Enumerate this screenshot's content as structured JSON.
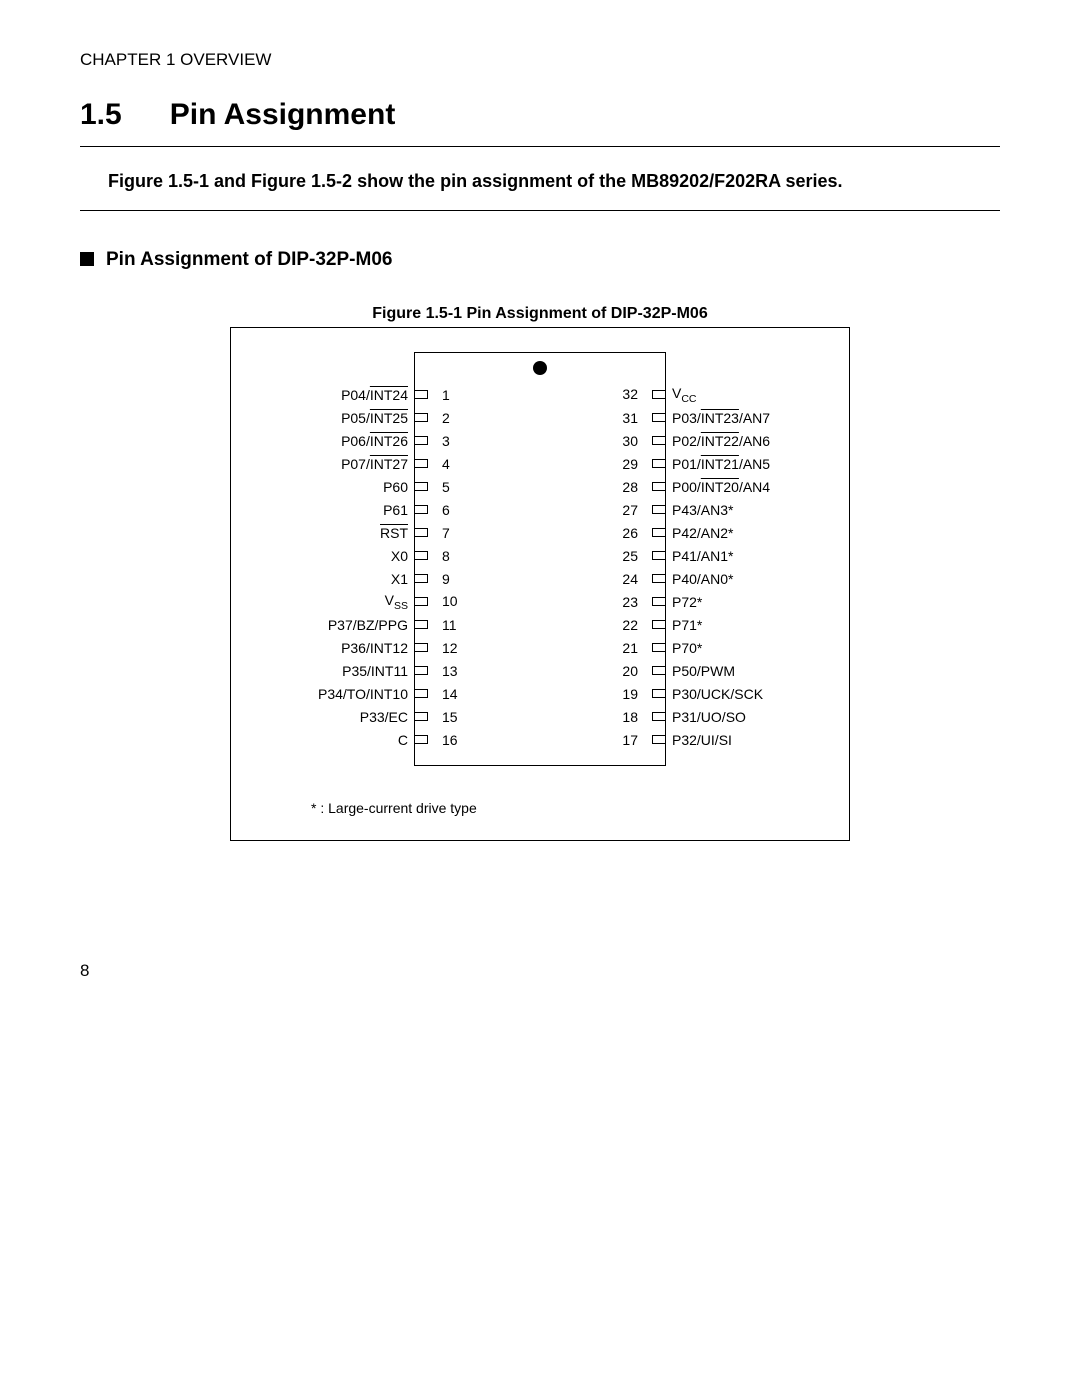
{
  "chapter_header": "CHAPTER 1  OVERVIEW",
  "section_number": "1.5",
  "section_title": "Pin Assignment",
  "intro_text": "Figure 1.5-1 and Figure 1.5-2 show the pin assignment of the MB89202/F202RA series.",
  "subheading": "Pin Assignment of DIP-32P-M06",
  "figure_caption": "Figure 1.5-1  Pin Assignment of DIP-32P-M06",
  "footnote": "* : Large-current drive type",
  "page_number": "8",
  "pins": {
    "left": [
      {
        "num": 1,
        "segments": [
          {
            "t": "P04/"
          },
          {
            "t": "INT24",
            "ov": true
          }
        ]
      },
      {
        "num": 2,
        "segments": [
          {
            "t": "P05/"
          },
          {
            "t": "INT25",
            "ov": true
          }
        ]
      },
      {
        "num": 3,
        "segments": [
          {
            "t": "P06/"
          },
          {
            "t": "INT26",
            "ov": true
          }
        ]
      },
      {
        "num": 4,
        "segments": [
          {
            "t": "P07/"
          },
          {
            "t": "INT27",
            "ov": true
          }
        ]
      },
      {
        "num": 5,
        "segments": [
          {
            "t": "P60"
          }
        ]
      },
      {
        "num": 6,
        "segments": [
          {
            "t": "P61"
          }
        ]
      },
      {
        "num": 7,
        "segments": [
          {
            "t": "RST",
            "ov": true
          }
        ]
      },
      {
        "num": 8,
        "segments": [
          {
            "t": "X0"
          }
        ]
      },
      {
        "num": 9,
        "segments": [
          {
            "t": "X1"
          }
        ]
      },
      {
        "num": 10,
        "segments": [
          {
            "t": "V"
          },
          {
            "t": "SS",
            "sub": true
          }
        ]
      },
      {
        "num": 11,
        "segments": [
          {
            "t": "P37/BZ/PPG"
          }
        ]
      },
      {
        "num": 12,
        "segments": [
          {
            "t": "P36/INT12"
          }
        ]
      },
      {
        "num": 13,
        "segments": [
          {
            "t": "P35/INT11"
          }
        ]
      },
      {
        "num": 14,
        "segments": [
          {
            "t": "P34/TO/INT10"
          }
        ]
      },
      {
        "num": 15,
        "segments": [
          {
            "t": "P33/EC"
          }
        ]
      },
      {
        "num": 16,
        "segments": [
          {
            "t": "C"
          }
        ]
      }
    ],
    "right": [
      {
        "num": 32,
        "segments": [
          {
            "t": "V"
          },
          {
            "t": "CC",
            "sub": true
          }
        ]
      },
      {
        "num": 31,
        "segments": [
          {
            "t": "P03/"
          },
          {
            "t": "INT23",
            "ov": true
          },
          {
            "t": "/AN7"
          }
        ]
      },
      {
        "num": 30,
        "segments": [
          {
            "t": "P02/"
          },
          {
            "t": "INT22",
            "ov": true
          },
          {
            "t": "/AN6"
          }
        ]
      },
      {
        "num": 29,
        "segments": [
          {
            "t": "P01/"
          },
          {
            "t": "INT21",
            "ov": true
          },
          {
            "t": "/AN5"
          }
        ]
      },
      {
        "num": 28,
        "segments": [
          {
            "t": "P00/"
          },
          {
            "t": "INT20",
            "ov": true
          },
          {
            "t": "/AN4"
          }
        ]
      },
      {
        "num": 27,
        "segments": [
          {
            "t": "P43/AN3*"
          }
        ]
      },
      {
        "num": 26,
        "segments": [
          {
            "t": "P42/AN2*"
          }
        ]
      },
      {
        "num": 25,
        "segments": [
          {
            "t": "P41/AN1*"
          }
        ]
      },
      {
        "num": 24,
        "segments": [
          {
            "t": "P40/AN0*"
          }
        ]
      },
      {
        "num": 23,
        "segments": [
          {
            "t": "P72*"
          }
        ]
      },
      {
        "num": 22,
        "segments": [
          {
            "t": "P71*"
          }
        ]
      },
      {
        "num": 21,
        "segments": [
          {
            "t": "P70*"
          }
        ]
      },
      {
        "num": 20,
        "segments": [
          {
            "t": "P50/PWM"
          }
        ]
      },
      {
        "num": 19,
        "segments": [
          {
            "t": "P30/UCK/SCK"
          }
        ]
      },
      {
        "num": 18,
        "segments": [
          {
            "t": "P31/UO/SO"
          }
        ]
      },
      {
        "num": 17,
        "segments": [
          {
            "t": "P32/UI/SI"
          }
        ]
      }
    ]
  }
}
